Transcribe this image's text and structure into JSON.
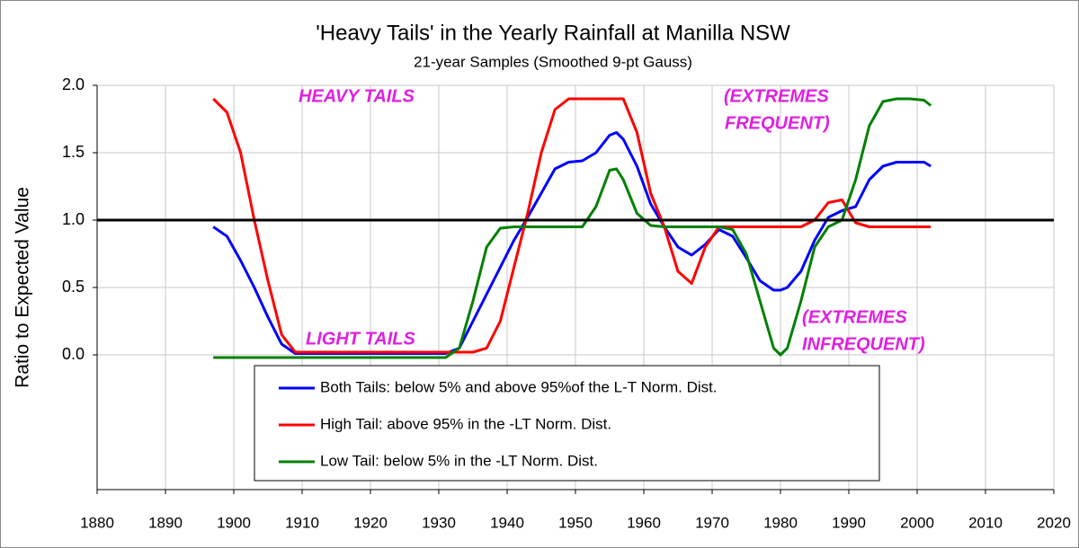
{
  "chart_data": {
    "type": "line",
    "title": "'Heavy Tails' in the Yearly Rainfall at Manilla NSW",
    "subtitle": "21-year Samples (Smoothed 9-pt Gauss)",
    "y_label": "Ratio to Expected Value",
    "x": [
      1897,
      1899,
      1901,
      1903,
      1905,
      1907,
      1909,
      1911,
      1913,
      1915,
      1917,
      1919,
      1921,
      1923,
      1925,
      1927,
      1929,
      1931,
      1933,
      1935,
      1937,
      1939,
      1941,
      1943,
      1945,
      1947,
      1949,
      1951,
      1953,
      1955,
      1956,
      1957,
      1959,
      1961,
      1963,
      1965,
      1967,
      1969,
      1971,
      1973,
      1975,
      1977,
      1979,
      1980,
      1981,
      1983,
      1985,
      1987,
      1989,
      1991,
      1993,
      1995,
      1997,
      1999,
      2001,
      2002
    ],
    "series": [
      {
        "name": "Both Tails: below 5% and above 95%of the L-T Norm. Dist.",
        "color": "#0000ff",
        "values": [
          0.95,
          0.88,
          0.7,
          0.5,
          0.28,
          0.08,
          0.01,
          0.01,
          0.01,
          0.01,
          0.01,
          0.01,
          0.01,
          0.01,
          0.01,
          0.01,
          0.01,
          0.01,
          0.05,
          0.25,
          0.45,
          0.65,
          0.85,
          1.02,
          1.2,
          1.38,
          1.43,
          1.44,
          1.5,
          1.63,
          1.65,
          1.6,
          1.4,
          1.12,
          0.95,
          0.8,
          0.74,
          0.82,
          0.93,
          0.88,
          0.72,
          0.55,
          0.48,
          0.48,
          0.5,
          0.62,
          0.85,
          1.02,
          1.07,
          1.1,
          1.3,
          1.4,
          1.43,
          1.43,
          1.43,
          1.4
        ]
      },
      {
        "name": "High Tail: above 95% in the -LT Norm. Dist.",
        "color": "#ff0000",
        "values": [
          1.9,
          1.8,
          1.5,
          1.0,
          0.55,
          0.15,
          0.02,
          0.02,
          0.02,
          0.02,
          0.02,
          0.02,
          0.02,
          0.02,
          0.02,
          0.02,
          0.02,
          0.02,
          0.02,
          0.02,
          0.05,
          0.25,
          0.65,
          1.05,
          1.5,
          1.82,
          1.9,
          1.9,
          1.9,
          1.9,
          1.9,
          1.9,
          1.65,
          1.2,
          0.95,
          0.62,
          0.53,
          0.8,
          0.95,
          0.95,
          0.95,
          0.95,
          0.95,
          0.95,
          0.95,
          0.95,
          1.0,
          1.13,
          1.15,
          0.98,
          0.95,
          0.95,
          0.95,
          0.95,
          0.95,
          0.95
        ]
      },
      {
        "name": "Low Tail: below 5% in the -LT Norm. Dist.",
        "color": "#008000",
        "values": [
          -0.02,
          -0.02,
          -0.02,
          -0.02,
          -0.02,
          -0.02,
          -0.02,
          -0.02,
          -0.02,
          -0.02,
          -0.02,
          -0.02,
          -0.02,
          -0.02,
          -0.02,
          -0.02,
          -0.02,
          -0.02,
          0.05,
          0.4,
          0.8,
          0.94,
          0.95,
          0.95,
          0.95,
          0.95,
          0.95,
          0.95,
          1.1,
          1.37,
          1.38,
          1.3,
          1.05,
          0.96,
          0.95,
          0.95,
          0.95,
          0.95,
          0.95,
          0.93,
          0.75,
          0.4,
          0.05,
          0.0,
          0.05,
          0.4,
          0.8,
          0.95,
          1.0,
          1.3,
          1.7,
          1.88,
          1.9,
          1.9,
          1.89,
          1.85
        ]
      }
    ],
    "reference_line": 1.0,
    "annotations": [
      "HEAVY TAILS",
      "LIGHT TAILS",
      "(EXTREMES",
      "FREQUENT)",
      "(EXTREMES",
      "INFREQUENT)"
    ],
    "annotation_color": "#e020e0",
    "xlim": [
      1880,
      2020
    ],
    "xticks": [
      1880,
      1890,
      1900,
      1910,
      1920,
      1930,
      1940,
      1950,
      1960,
      1970,
      1980,
      1990,
      2000,
      2010,
      2020
    ],
    "ylim": [
      -1.0,
      2.0
    ],
    "yticks": [
      {
        "value": 0,
        "label": "0.0"
      },
      {
        "value": 0.5,
        "label": "0.5"
      },
      {
        "value": 1,
        "label": "1.0"
      },
      {
        "value": 1.5,
        "label": "1.5"
      },
      {
        "value": 2,
        "label": "2.0"
      }
    ],
    "grid": true,
    "legend": "bottom-center"
  }
}
